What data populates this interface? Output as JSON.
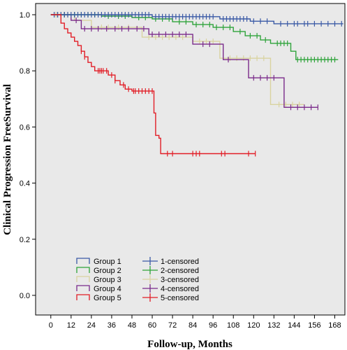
{
  "chart_data": {
    "type": "line",
    "xlabel": "Follow-up, Months",
    "ylabel": "Clinical Progression FreeSurvival",
    "xlim": [
      -9,
      174
    ],
    "ylim": [
      -0.07,
      1.04
    ],
    "xticks": [
      0,
      12,
      24,
      36,
      48,
      60,
      72,
      84,
      96,
      108,
      120,
      132,
      144,
      156,
      168
    ],
    "yticks": [
      0.0,
      0.2,
      0.4,
      0.6,
      0.8,
      1.0
    ],
    "ytick_labels": [
      "0.0",
      "0.2",
      "0.4",
      "0.6",
      "0.8",
      "1.0"
    ],
    "grid": false,
    "plot_background": "#e9e9e9",
    "legend": {
      "position": "bottom-left",
      "lines": [
        "Group 1",
        "Group 2",
        "Group 3",
        "Group 4",
        "Group 5"
      ],
      "censored": [
        "1-censored",
        "2-censored",
        "3-censored",
        "4-censored",
        "5-censored"
      ]
    },
    "series": [
      {
        "name": "Group 1",
        "censored_name": "1-censored",
        "color": "#3b5aa6",
        "steps": [
          [
            0,
            1.0
          ],
          [
            60,
            0.993
          ],
          [
            100,
            0.985
          ],
          [
            118,
            0.977
          ],
          [
            132,
            0.968
          ]
        ],
        "end": 173,
        "censored": [
          2,
          4,
          6,
          8,
          10,
          12,
          14,
          16,
          18,
          20,
          22,
          24,
          26,
          28,
          30,
          32,
          34,
          36,
          38,
          40,
          42,
          44,
          46,
          48,
          50,
          52,
          54,
          56,
          58,
          62,
          64,
          66,
          68,
          70,
          72,
          74,
          76,
          78,
          80,
          82,
          84,
          86,
          88,
          90,
          92,
          94,
          96,
          102,
          104,
          106,
          108,
          110,
          112,
          114,
          116,
          120,
          124,
          128,
          136,
          140,
          144,
          146,
          150,
          152,
          156,
          160,
          164,
          168,
          172
        ]
      },
      {
        "name": "Group 2",
        "censored_name": "2-censored",
        "color": "#2ea33a",
        "steps": [
          [
            0,
            1.0
          ],
          [
            30,
            0.995
          ],
          [
            48,
            0.99
          ],
          [
            60,
            0.985
          ],
          [
            72,
            0.975
          ],
          [
            84,
            0.965
          ],
          [
            96,
            0.955
          ],
          [
            108,
            0.94
          ],
          [
            115,
            0.925
          ],
          [
            124,
            0.91
          ],
          [
            130,
            0.898
          ],
          [
            142,
            0.87
          ],
          [
            145,
            0.84
          ]
        ],
        "end": 170,
        "censored": [
          4,
          8,
          14,
          18,
          22,
          26,
          34,
          40,
          44,
          52,
          56,
          62,
          66,
          70,
          76,
          80,
          86,
          90,
          94,
          98,
          102,
          106,
          112,
          118,
          122,
          127,
          134,
          136,
          138,
          140,
          146,
          148,
          150,
          152,
          154,
          156,
          158,
          160,
          162,
          164,
          166,
          168
        ]
      },
      {
        "name": "Group 3",
        "censored_name": "3-censored",
        "color": "#d9d3a0",
        "steps": [
          [
            0,
            1.0
          ],
          [
            14,
            0.98
          ],
          [
            24,
            0.955
          ],
          [
            54,
            0.92
          ],
          [
            84,
            0.905
          ],
          [
            100,
            0.845
          ],
          [
            130,
            0.68
          ]
        ],
        "end": 150,
        "censored": [
          3,
          6,
          10,
          30,
          34,
          40,
          46,
          58,
          62,
          66,
          70,
          74,
          78,
          88,
          92,
          96,
          106,
          110,
          114,
          118,
          122,
          126,
          135,
          139,
          143,
          147
        ]
      },
      {
        "name": "Group 4",
        "censored_name": "4-censored",
        "color": "#7a2a8a",
        "steps": [
          [
            0,
            1.0
          ],
          [
            12,
            0.98
          ],
          [
            18,
            0.95
          ],
          [
            58,
            0.93
          ],
          [
            84,
            0.895
          ],
          [
            102,
            0.84
          ],
          [
            117,
            0.775
          ],
          [
            138,
            0.67
          ]
        ],
        "end": 158,
        "censored": [
          4,
          8,
          15,
          20,
          24,
          28,
          33,
          38,
          42,
          46,
          51,
          55,
          60,
          64,
          68,
          72,
          76,
          80,
          90,
          94,
          105,
          120,
          124,
          128,
          132,
          142,
          146,
          150,
          154,
          158
        ]
      },
      {
        "name": "Group 5",
        "censored_name": "5-censored",
        "color": "#e21d26",
        "steps": [
          [
            0,
            1.0
          ],
          [
            6,
            0.97
          ],
          [
            8,
            0.95
          ],
          [
            10,
            0.935
          ],
          [
            12,
            0.92
          ],
          [
            14,
            0.905
          ],
          [
            16,
            0.89
          ],
          [
            18,
            0.87
          ],
          [
            20,
            0.85
          ],
          [
            22,
            0.83
          ],
          [
            24,
            0.815
          ],
          [
            26,
            0.8
          ],
          [
            34,
            0.785
          ],
          [
            38,
            0.765
          ],
          [
            41,
            0.75
          ],
          [
            44,
            0.735
          ],
          [
            48,
            0.728
          ],
          [
            61,
            0.65
          ],
          [
            62,
            0.57
          ],
          [
            64,
            0.56
          ],
          [
            65,
            0.505
          ]
        ],
        "end": 121,
        "censored": [
          18,
          20,
          28,
          29,
          30,
          31,
          33,
          36,
          38,
          43,
          46,
          49,
          50,
          52,
          54,
          56,
          58,
          60,
          69,
          72,
          84,
          86,
          88,
          101,
          103,
          117,
          121
        ]
      }
    ]
  }
}
